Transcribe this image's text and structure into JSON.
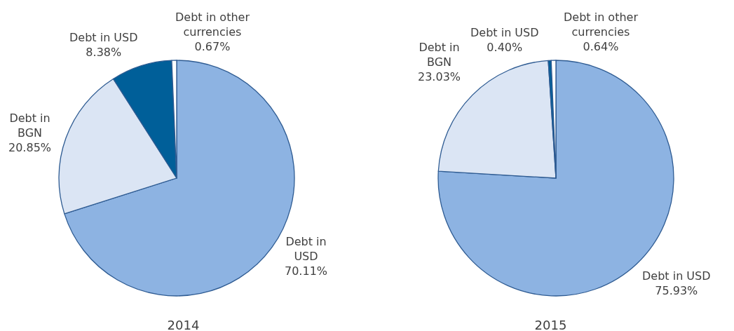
{
  "chart_data": [
    {
      "type": "pie",
      "title": "2014",
      "categories": [
        "Debt in USD",
        "Debt in BGN",
        "Debt in USD",
        "Debt in other currencies"
      ],
      "values": [
        70.11,
        20.85,
        8.38,
        0.67
      ],
      "colors": [
        "#8db3e2",
        "#dbe5f4",
        "#005f99",
        "#ffffff"
      ],
      "value_labels": [
        "70.11%",
        "20.85%",
        "8.38%",
        "0.67%"
      ],
      "legend": false
    },
    {
      "type": "pie",
      "title": "2015",
      "categories": [
        "Debt in USD",
        "Debt in BGN",
        "Debt in USD",
        "Debt in other currencies"
      ],
      "values": [
        75.93,
        23.03,
        0.4,
        0.64
      ],
      "colors": [
        "#8db3e2",
        "#dbe5f4",
        "#005f99",
        "#ffffff"
      ],
      "value_labels": [
        "75.93%",
        "23.03%",
        "0.40%",
        "0.64%"
      ],
      "legend": false
    }
  ]
}
